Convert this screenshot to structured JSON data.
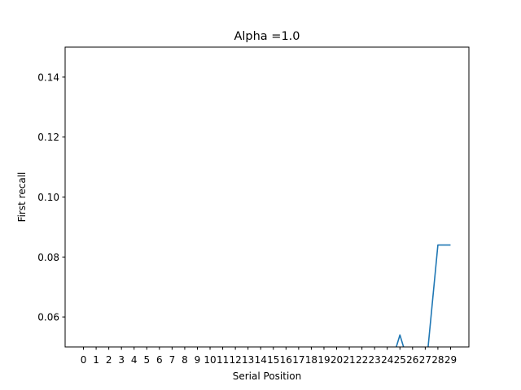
{
  "chart_data": {
    "type": "line",
    "title": "Alpha =1.0",
    "xlabel": "Serial Position",
    "ylabel": "First recall",
    "x_ticks": [
      "0",
      "1",
      "2",
      "3",
      "4",
      "5",
      "6",
      "7",
      "8",
      "9",
      "10",
      "11",
      "12",
      "13",
      "14",
      "15",
      "16",
      "17",
      "18",
      "19",
      "20",
      "21",
      "22",
      "23",
      "24",
      "25",
      "26",
      "27",
      "28",
      "29"
    ],
    "y_ticks": [
      "0.06",
      "0.08",
      "0.10",
      "0.12",
      "0.14"
    ],
    "ylim": [
      0.05,
      0.15
    ],
    "xlim": [
      -1.45,
      30.45
    ],
    "grid": false,
    "series": [
      {
        "color": "#1f77b4",
        "x": [
          0,
          1,
          2,
          3,
          4,
          5,
          6,
          7,
          8,
          9,
          10,
          11,
          12,
          13,
          14,
          15,
          16,
          17,
          18,
          19,
          20,
          21,
          22,
          23,
          24,
          25,
          26,
          27,
          28,
          29
        ],
        "y": [
          0.04,
          0.04,
          0.04,
          0.04,
          0.04,
          0.04,
          0.04,
          0.04,
          0.04,
          0.04,
          0.04,
          0.04,
          0.04,
          0.04,
          0.04,
          0.04,
          0.04,
          0.04,
          0.04,
          0.04,
          0.04,
          0.04,
          0.04,
          0.04,
          0.04,
          0.054,
          0.04,
          0.04,
          0.084,
          0.084
        ]
      }
    ]
  }
}
